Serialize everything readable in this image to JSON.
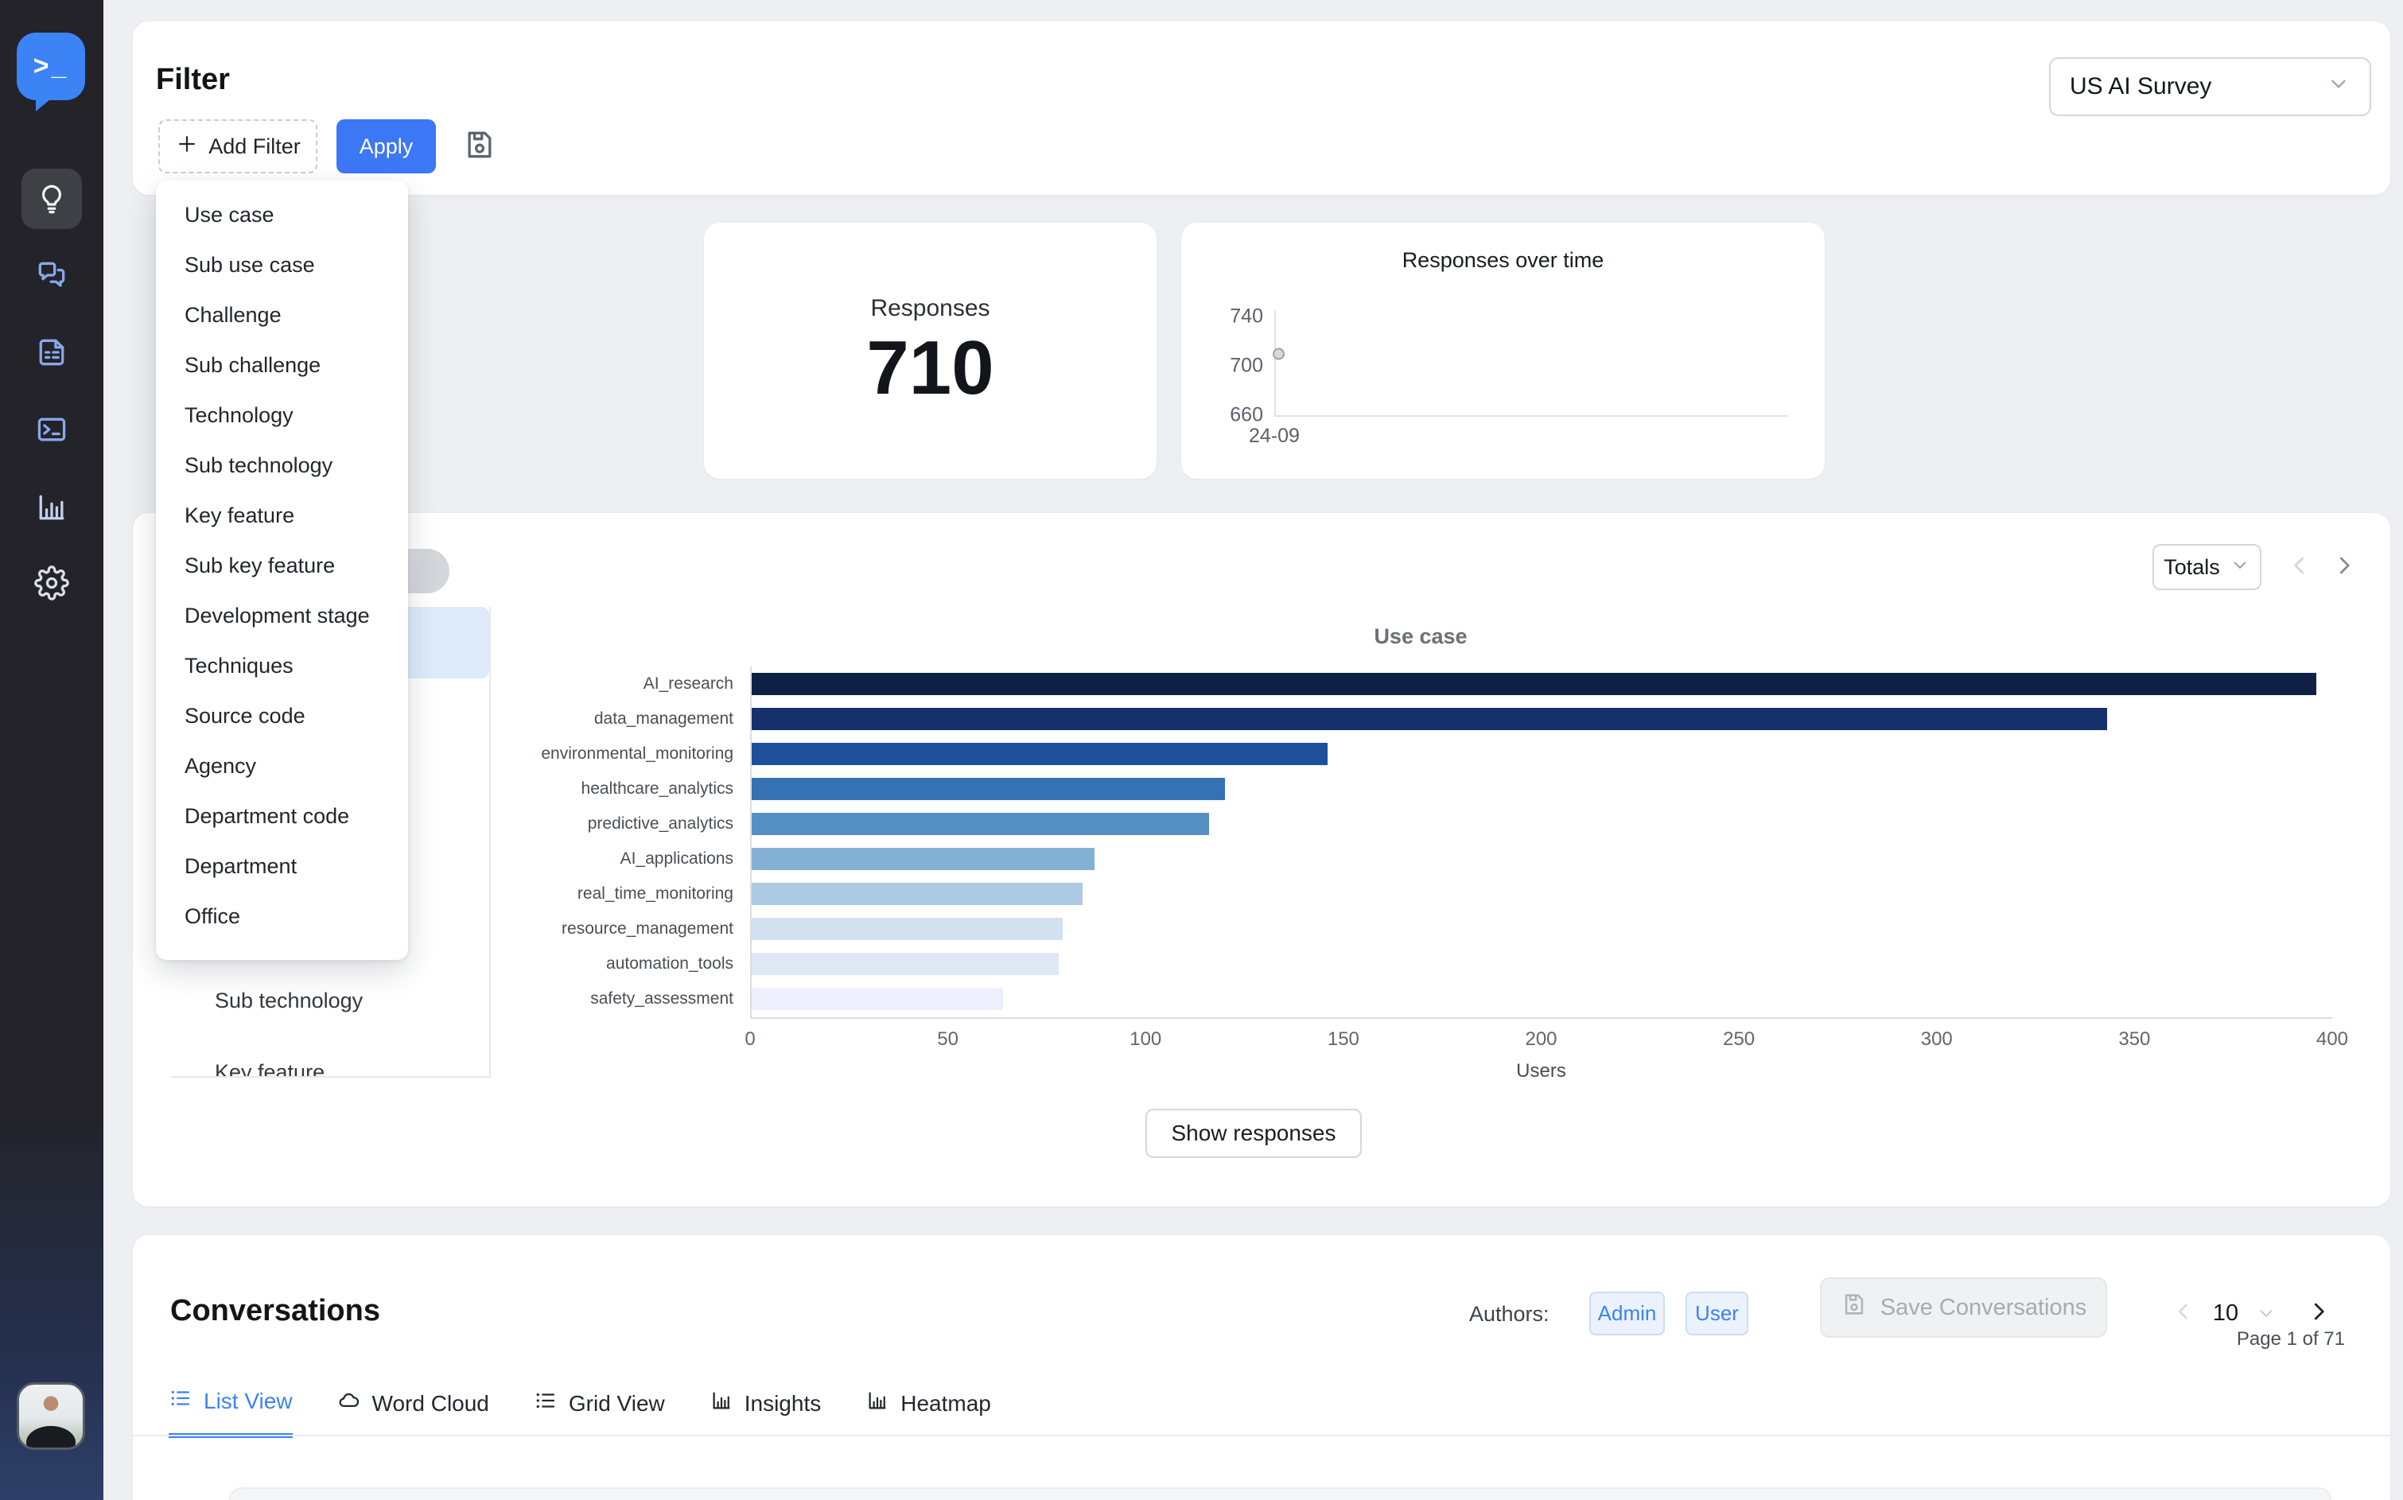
{
  "header": {
    "title": "Filter",
    "add_filter_label": "Add Filter",
    "apply_label": "Apply",
    "survey_selector": "US AI Survey"
  },
  "filter_menu": {
    "items": [
      "Use case",
      "Sub use case",
      "Challenge",
      "Sub challenge",
      "Technology",
      "Sub technology",
      "Key feature",
      "Sub key feature",
      "Development stage",
      "Techniques",
      "Source code",
      "Agency",
      "Department code",
      "Department",
      "Office"
    ]
  },
  "stats": {
    "responses_label": "Responses",
    "responses_value": "710"
  },
  "chart_data": [
    {
      "type": "scatter",
      "title": "Responses over time",
      "x_categories": [
        "24-09"
      ],
      "series": [
        {
          "name": "Responses",
          "values": [
            710
          ]
        }
      ],
      "ylim": [
        660,
        740
      ],
      "yticks": [
        740,
        700,
        660
      ],
      "grid": false
    },
    {
      "type": "bar",
      "orientation": "horizontal",
      "title": "Use case",
      "xlabel": "Users",
      "categories": [
        "AI_research",
        "data_management",
        "environmental_monitoring",
        "healthcare_analytics",
        "predictive_analytics",
        "AI_applications",
        "real_time_monitoring",
        "resource_management",
        "automation_tools",
        "safety_assessment"
      ],
      "values": [
        396,
        343,
        146,
        120,
        116,
        87,
        84,
        79,
        78,
        64
      ],
      "xlim": [
        0,
        400
      ],
      "xticks": [
        0,
        50,
        100,
        150,
        200,
        250,
        300,
        350,
        400
      ],
      "bar_colors": [
        "#0e2145",
        "#15306b",
        "#1d4f9b",
        "#3671b3",
        "#5590c5",
        "#85b0d5",
        "#abc9e2",
        "#d2e1f0",
        "#dfe9f6",
        "#edf0fc"
      ]
    }
  ],
  "chart_card": {
    "totals_label": "Totals",
    "hidden_pill_text": "t",
    "panel_items": [
      "Use case",
      "Sub use case",
      "Challenge",
      "Sub challenge",
      "Technology",
      "Sub technology",
      "Key feature"
    ],
    "selected_panel_item": "Use case",
    "show_responses_label": "Show responses"
  },
  "conversations": {
    "title": "Conversations",
    "authors_label": "Authors:",
    "author_filters": [
      "Admin",
      "User"
    ],
    "save_button": "Save Conversations",
    "pagination": {
      "page_size": "10",
      "page_info": "Page 1 of 71"
    },
    "tabs": [
      {
        "label": "List View",
        "icon": "list-icon",
        "active": true
      },
      {
        "label": "Word Cloud",
        "icon": "cloud-icon",
        "active": false
      },
      {
        "label": "Grid View",
        "icon": "list-icon",
        "active": false
      },
      {
        "label": "Insights",
        "icon": "bar-chart-icon",
        "active": false
      },
      {
        "label": "Heatmap",
        "icon": "bar-chart-icon",
        "active": false
      }
    ]
  },
  "sidebar": {
    "logo_glyph": ">_",
    "nav": [
      {
        "icon": "lightbulb-icon",
        "active": true
      },
      {
        "icon": "chat-icon",
        "active": false
      },
      {
        "icon": "document-icon",
        "active": false
      },
      {
        "icon": "terminal-icon",
        "active": false
      },
      {
        "icon": "bar-chart-icon",
        "active": false
      },
      {
        "icon": "gear-icon",
        "active": false
      }
    ]
  },
  "colors": {
    "accent": "#3b82f6",
    "sidebar_bg": "#232329",
    "selected_row_bg": "#ddebfb",
    "page_bg": "#edeff2"
  }
}
